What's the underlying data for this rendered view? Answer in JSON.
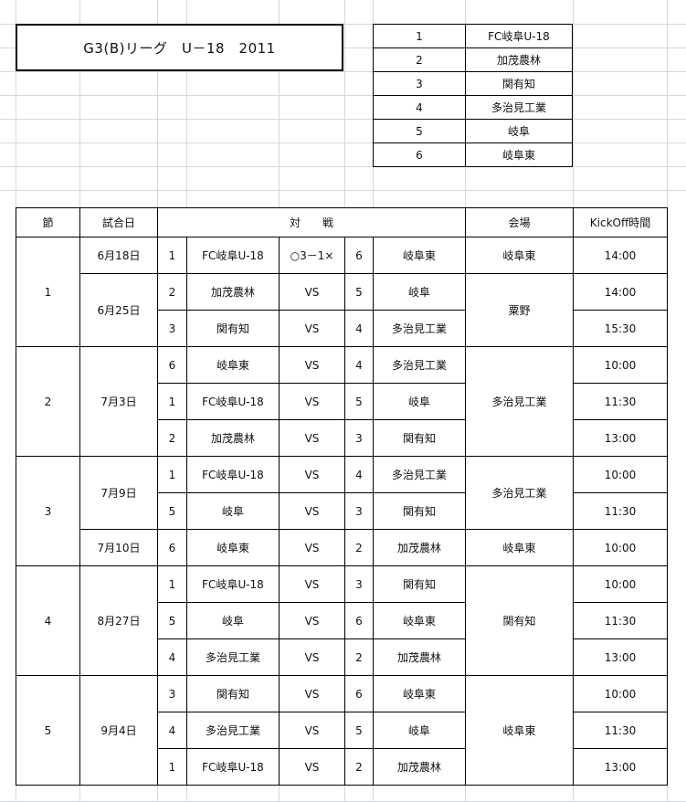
{
  "title": "G3(B)リーグ　U－18　2011",
  "teams": [
    {
      "no": "1",
      "name": "FC岐阜U-18"
    },
    {
      "no": "2",
      "name": "加茂農林"
    },
    {
      "no": "3",
      "name": "関有知"
    },
    {
      "no": "4",
      "name": "多治見工業"
    },
    {
      "no": "5",
      "name": "岐阜"
    },
    {
      "no": "6",
      "name": "岐阜東"
    }
  ],
  "headers": {
    "round": "節",
    "date": "試合日",
    "match": "対　　戦",
    "venue": "会場",
    "kickoff": "KickOff時間"
  },
  "rounds": [
    {
      "round": "1",
      "dates": [
        {
          "date": "6月18日",
          "venue": "岐阜東",
          "matches": [
            {
              "home_no": "1",
              "home": "FC岐阜U-18",
              "result": "○3－1×",
              "away_no": "6",
              "away": "岐阜東",
              "time": "14:00"
            }
          ]
        },
        {
          "date": "6月25日",
          "venue": "粟野",
          "matches": [
            {
              "home_no": "2",
              "home": "加茂農林",
              "result": "VS",
              "away_no": "5",
              "away": "岐阜",
              "time": "14:00"
            },
            {
              "home_no": "3",
              "home": "関有知",
              "result": "VS",
              "away_no": "4",
              "away": "多治見工業",
              "time": "15:30"
            }
          ]
        }
      ]
    },
    {
      "round": "2",
      "dates": [
        {
          "date": "7月3日",
          "venue": "多治見工業",
          "matches": [
            {
              "home_no": "6",
              "home": "岐阜東",
              "result": "VS",
              "away_no": "4",
              "away": "多治見工業",
              "time": "10:00"
            },
            {
              "home_no": "1",
              "home": "FC岐阜U-18",
              "result": "VS",
              "away_no": "5",
              "away": "岐阜",
              "time": "11:30"
            },
            {
              "home_no": "2",
              "home": "加茂農林",
              "result": "VS",
              "away_no": "3",
              "away": "関有知",
              "time": "13:00"
            }
          ]
        }
      ]
    },
    {
      "round": "3",
      "dates": [
        {
          "date": "7月9日",
          "venue": "多治見工業",
          "matches": [
            {
              "home_no": "1",
              "home": "FC岐阜U-18",
              "result": "VS",
              "away_no": "4",
              "away": "多治見工業",
              "time": "10:00"
            },
            {
              "home_no": "5",
              "home": "岐阜",
              "result": "VS",
              "away_no": "3",
              "away": "関有知",
              "time": "11:30"
            }
          ]
        },
        {
          "date": "7月10日",
          "venue": "岐阜東",
          "matches": [
            {
              "home_no": "6",
              "home": "岐阜東",
              "result": "VS",
              "away_no": "2",
              "away": "加茂農林",
              "time": "10:00"
            }
          ]
        }
      ]
    },
    {
      "round": "4",
      "dates": [
        {
          "date": "8月27日",
          "venue": "関有知",
          "matches": [
            {
              "home_no": "1",
              "home": "FC岐阜U-18",
              "result": "VS",
              "away_no": "3",
              "away": "関有知",
              "time": "10:00"
            },
            {
              "home_no": "5",
              "home": "岐阜",
              "result": "VS",
              "away_no": "6",
              "away": "岐阜東",
              "time": "11:30"
            },
            {
              "home_no": "4",
              "home": "多治見工業",
              "result": "VS",
              "away_no": "2",
              "away": "加茂農林",
              "time": "13:00"
            }
          ]
        }
      ]
    },
    {
      "round": "5",
      "dates": [
        {
          "date": "9月4日",
          "venue": "岐阜東",
          "matches": [
            {
              "home_no": "3",
              "home": "関有知",
              "result": "VS",
              "away_no": "6",
              "away": "岐阜東",
              "time": "10:00"
            },
            {
              "home_no": "4",
              "home": "多治見工業",
              "result": "VS",
              "away_no": "5",
              "away": "岐阜",
              "time": "11:30"
            },
            {
              "home_no": "1",
              "home": "FC岐阜U-18",
              "result": "VS",
              "away_no": "2",
              "away": "加茂農林",
              "time": "13:00"
            }
          ]
        }
      ]
    }
  ]
}
